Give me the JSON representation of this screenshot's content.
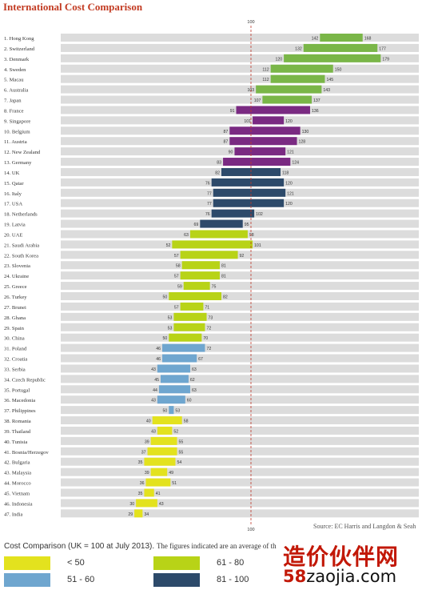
{
  "title": "International Cost Comparison",
  "source": "Source: EC Harris and Langdon & Seah",
  "legend": {
    "title": "Cost Comparison (UK = 100 at July 2013).",
    "note": "The figures indicated are an average of th",
    "items": [
      {
        "label": "< 50",
        "color": "#e3e21e"
      },
      {
        "label": "61 - 80",
        "color": "#b8d317"
      },
      {
        "label": "51 - 60",
        "color": "#6fa6cf"
      },
      {
        "label": "81 - 100",
        "color": "#2d4a6a"
      }
    ]
  },
  "watermark": {
    "text": "造价伙伴网",
    "sub_prefix": "58",
    "sub_suffix": "zaojia.com"
  },
  "chart_data": {
    "type": "bar",
    "subtype": "range",
    "reference_line": 100,
    "reference_label": "100",
    "colors": {
      "green": "#7ab648",
      "purple": "#7a2a82",
      "navy": "#2d4a6a",
      "lime": "#b8d317",
      "blue": "#6fa6cf",
      "yellow": "#e3e21e"
    },
    "rows": [
      {
        "label": "1. Hong Kong",
        "low": 142,
        "high": 168,
        "color": "green"
      },
      {
        "label": "2. Switzerland",
        "low": 132,
        "high": 177,
        "color": "green"
      },
      {
        "label": "3. Denmark",
        "low": 120,
        "high": 179,
        "color": "green"
      },
      {
        "label": "4. Sweden",
        "low": 112,
        "high": 150,
        "color": "green"
      },
      {
        "label": "5. Macau",
        "low": 112,
        "high": 145,
        "color": "green"
      },
      {
        "label": "6. Australia",
        "low": 103,
        "high": 143,
        "color": "green"
      },
      {
        "label": "7. Japan",
        "low": 107,
        "high": 137,
        "color": "green"
      },
      {
        "label": "8. France",
        "low": 91,
        "high": 136,
        "color": "purple"
      },
      {
        "label": "9. Singapore",
        "low": 101,
        "high": 120,
        "color": "purple"
      },
      {
        "label": "10. Belgium",
        "low": 87,
        "high": 130,
        "color": "purple"
      },
      {
        "label": "11. Austria",
        "low": 87,
        "high": 128,
        "color": "purple"
      },
      {
        "label": "12. New Zealand",
        "low": 90,
        "high": 121,
        "color": "purple"
      },
      {
        "label": "13. Germany",
        "low": 83,
        "high": 124,
        "color": "purple"
      },
      {
        "label": "14. UK",
        "low": 82,
        "high": 118,
        "color": "navy"
      },
      {
        "label": "15. Qatar",
        "low": 76,
        "high": 120,
        "color": "navy"
      },
      {
        "label": "16. Italy",
        "low": 77,
        "high": 121,
        "color": "navy"
      },
      {
        "label": "17. USA",
        "low": 77,
        "high": 120,
        "color": "navy"
      },
      {
        "label": "18. Netherlands",
        "low": 76,
        "high": 102,
        "color": "navy"
      },
      {
        "label": "19. Latvia",
        "low": 69,
        "high": 95,
        "color": "navy"
      },
      {
        "label": "20. UAE",
        "low": 63,
        "high": 98,
        "color": "lime"
      },
      {
        "label": "21. Saudi Arabia",
        "low": 52,
        "high": 101,
        "color": "lime"
      },
      {
        "label": "22. South Korea",
        "low": 57,
        "high": 92,
        "color": "lime"
      },
      {
        "label": "23. Slovenia",
        "low": 58,
        "high": 81,
        "color": "lime"
      },
      {
        "label": "24. Ukraine",
        "low": 57,
        "high": 81,
        "color": "lime"
      },
      {
        "label": "25. Greece",
        "low": 59,
        "high": 75,
        "color": "lime"
      },
      {
        "label": "26. Turkey",
        "low": 50,
        "high": 82,
        "color": "lime"
      },
      {
        "label": "27. Brunei",
        "low": 57,
        "high": 71,
        "color": "lime"
      },
      {
        "label": "28. Ghana",
        "low": 53,
        "high": 73,
        "color": "lime"
      },
      {
        "label": "29. Spain",
        "low": 53,
        "high": 72,
        "color": "lime"
      },
      {
        "label": "30. China",
        "low": 50,
        "high": 70,
        "color": "lime"
      },
      {
        "label": "31. Poland",
        "low": 46,
        "high": 72,
        "color": "blue"
      },
      {
        "label": "32. Croatia",
        "low": 46,
        "high": 67,
        "color": "blue"
      },
      {
        "label": "33. Serbia",
        "low": 43,
        "high": 63,
        "color": "blue"
      },
      {
        "label": "34. Czech Republic",
        "low": 45,
        "high": 62,
        "color": "blue"
      },
      {
        "label": "35. Portugal",
        "low": 44,
        "high": 63,
        "color": "blue"
      },
      {
        "label": "36. Macedonia",
        "low": 43,
        "high": 60,
        "color": "blue"
      },
      {
        "label": "37. Philippines",
        "low": 50,
        "high": 53,
        "color": "blue"
      },
      {
        "label": "38. Romania",
        "low": 40,
        "high": 58,
        "color": "yellow"
      },
      {
        "label": "39. Thailand",
        "low": 43,
        "high": 52,
        "color": "yellow"
      },
      {
        "label": "40. Tunisia",
        "low": 39,
        "high": 55,
        "color": "yellow"
      },
      {
        "label": "41. Bosnia/Herzegov",
        "low": 37,
        "high": 55,
        "color": "yellow"
      },
      {
        "label": "42. Bulgaria",
        "low": 35,
        "high": 54,
        "color": "yellow"
      },
      {
        "label": "43. Malaysia",
        "low": 39,
        "high": 49,
        "color": "yellow"
      },
      {
        "label": "44. Morocco",
        "low": 36,
        "high": 51,
        "color": "yellow"
      },
      {
        "label": "45. Vietnam",
        "low": 35,
        "high": 41,
        "color": "yellow"
      },
      {
        "label": "46. Indonesia",
        "low": 30,
        "high": 43,
        "color": "yellow"
      },
      {
        "label": "47. India",
        "low": 29,
        "high": 34,
        "color": "yellow"
      }
    ]
  }
}
